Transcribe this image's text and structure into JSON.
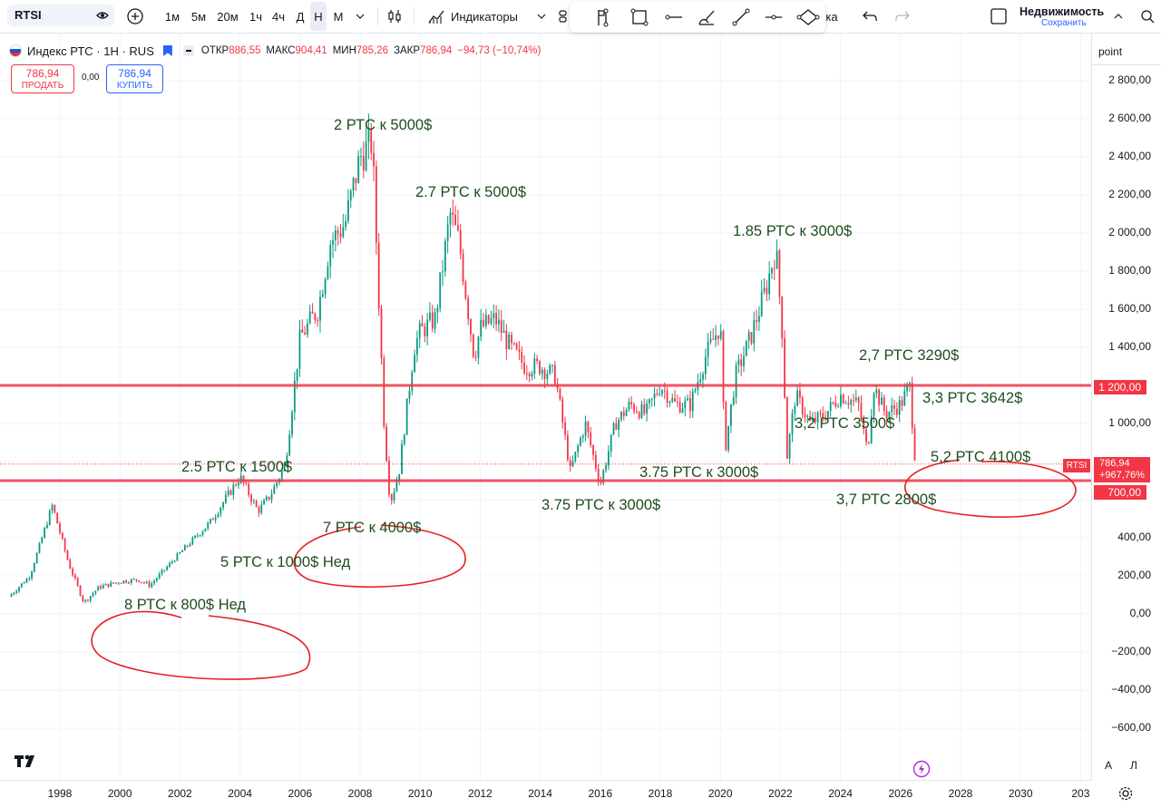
{
  "toolbar": {
    "symbol": "RTSI",
    "intervals": [
      "1м",
      "5м",
      "20м",
      "1ч",
      "4ч",
      "Д",
      "Н",
      "М"
    ],
    "active_interval": "Н",
    "indicators_label": "Индикаторы",
    "partial_label": "ка",
    "layout_name": "Недвижимость",
    "save_label": "Сохранить"
  },
  "legend": {
    "title": "Индекс РТС · 1Н · RUS",
    "open_label": "ОТКР",
    "open_value": "886,55",
    "high_label": "МАКС",
    "high_value": "904,41",
    "low_label": "МИН",
    "low_value": "785,26",
    "close_label": "ЗАКР",
    "close_value": "786,94",
    "change": "−94,73 (−10,74%)"
  },
  "trade": {
    "sell_price": "786,94",
    "sell_label": "ПРОДАТЬ",
    "spread": "0,00",
    "buy_price": "786,94",
    "buy_label": "КУПИТЬ"
  },
  "price_axis": {
    "unit_label": "point",
    "labels": [
      "2 800,00",
      "2 600,00",
      "2 400,00",
      "2 200,00",
      "2 000,00",
      "1 800,00",
      "1 600,00",
      "1 400,00",
      "1 000,00",
      "400,00",
      "200,00",
      "0,00",
      "−200,00",
      "−400,00",
      "−600,00"
    ],
    "tag_upper": "1 200,00",
    "tag_lower": "700,00",
    "tag_price": "786,94",
    "tag_change": "+967,76%",
    "tag_symbol": "RTSI",
    "auto_label": "A",
    "log_label": "Л"
  },
  "time_axis": {
    "labels": [
      "1998",
      "2000",
      "2002",
      "2004",
      "2006",
      "2008",
      "2010",
      "2012",
      "2014",
      "2016",
      "2018",
      "2020",
      "2022",
      "2024",
      "2026",
      "2028",
      "2030",
      "203"
    ]
  },
  "annotations": {
    "a1": "2 РТС к 5000$",
    "a2": "2.7 РТС к 5000$",
    "a3": "1.85 РТС к 3000$",
    "a4": "2,7 РТС 3290$",
    "a5": "3,3 РТС 3642$",
    "a6": "3,2 РТС 3500$",
    "a7": "5,2 РТС 4100$",
    "a8": "2.5 РТС к 1500$",
    "a9": "7 РТС к 4000$",
    "a10": "5 РТС к 1000$ Нед",
    "a11": "8 РТС к 800$ Нед",
    "a12": "3.75 РТС к 3000$",
    "a13": "3.75 РТС к 3000$",
    "a14": "3,7 РТС 2800$"
  },
  "colors": {
    "up": "#089981",
    "down": "#f23645",
    "level_line": "#f23645",
    "annotation_text": "#1e4d1e",
    "accent": "#2962ff"
  },
  "icons": [
    "eye-icon",
    "plus-circle-icon",
    "candles-icon",
    "indicators-icon",
    "undo-icon",
    "redo-icon",
    "tradingview-logo-icon",
    "lightning-icon",
    "settings-icon"
  ],
  "chart_data": {
    "type": "line",
    "title": "Индекс РТС · 1Н · RUS",
    "x": [
      1996.3,
      1997.0,
      1997.75,
      1998.3,
      1998.8,
      1999.3,
      2000.0,
      2000.6,
      2001.0,
      2002.0,
      2003.0,
      2004.0,
      2004.6,
      2005.0,
      2005.5,
      2006.0,
      2006.6,
      2007.0,
      2007.5,
      2008.0,
      2008.4,
      2008.8,
      2009.0,
      2009.3,
      2009.8,
      2010.0,
      2010.5,
      2011.0,
      2011.3,
      2011.8,
      2012.0,
      2012.5,
      2013.0,
      2013.5,
      2014.0,
      2014.5,
      2015.0,
      2015.5,
      2016.0,
      2016.5,
      2017.0,
      2017.5,
      2018.0,
      2018.5,
      2019.0,
      2019.5,
      2020.0,
      2020.15,
      2020.5,
      2021.0,
      2021.5,
      2021.85,
      2022.1,
      2022.2,
      2022.5,
      2023.0,
      2023.5,
      2024.0,
      2024.6,
      2024.9,
      2025.1,
      2025.5,
      2026.0,
      2026.3,
      2026.5
    ],
    "y": [
      90,
      200,
      570,
      260,
      60,
      140,
      170,
      180,
      150,
      320,
      480,
      720,
      540,
      620,
      780,
      1450,
      1600,
      1950,
      2050,
      2400,
      2480,
      1000,
      580,
      750,
      1400,
      1480,
      1550,
      2100,
      1950,
      1350,
      1500,
      1550,
      1400,
      1300,
      1300,
      1250,
      750,
      1000,
      680,
      1000,
      1100,
      1050,
      1200,
      1100,
      1100,
      1350,
      1520,
      850,
      1250,
      1450,
      1700,
      1920,
      1400,
      800,
      1150,
      1000,
      1050,
      1150,
      1100,
      850,
      1200,
      1050,
      1100,
      1200,
      787
    ],
    "ylim": [
      -700,
      2950
    ],
    "xlim": [
      1996.3,
      2032.5
    ],
    "levels": [
      1200,
      700
    ],
    "last_close": 786.94
  }
}
